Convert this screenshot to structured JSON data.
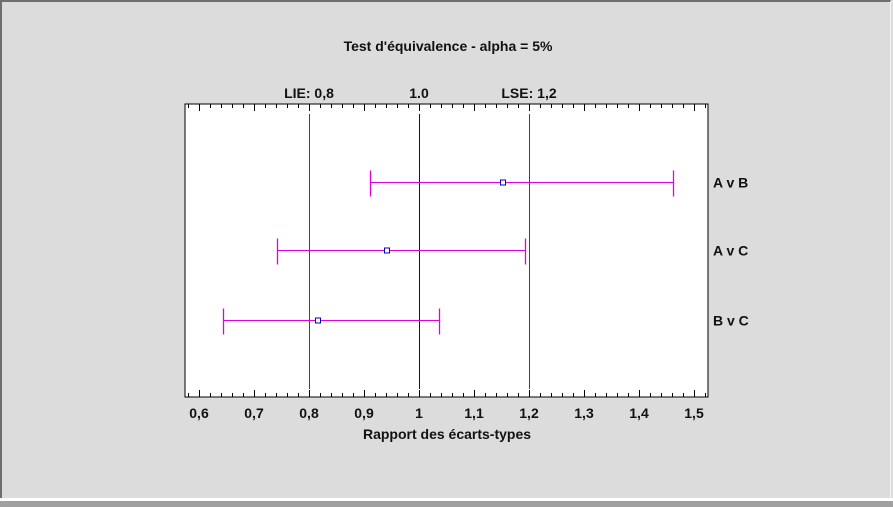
{
  "chart_data": {
    "type": "forest",
    "title": "Test d'équivalence - alpha = 5%",
    "xlabel": "Rapport des écarts-types",
    "ylabel": "",
    "xlim": [
      0.575,
      1.525
    ],
    "x_ticks": [
      "0,6",
      "0,7",
      "0,8",
      "0,9",
      "1",
      "1,1",
      "1,2",
      "1,3",
      "1,4",
      "1,5"
    ],
    "x_tick_values": [
      0.6,
      0.7,
      0.8,
      0.9,
      1.0,
      1.1,
      1.2,
      1.3,
      1.4,
      1.5
    ],
    "reference_lines": [
      {
        "label": "LIE: 0,8",
        "value": 0.8,
        "color": "#e00000"
      },
      {
        "label": "1.0",
        "value": 1.0,
        "color": "#0000c8"
      },
      {
        "label": "LSE: 1,2",
        "value": 1.2,
        "color": "#e00000"
      }
    ],
    "series": [
      {
        "name": "A v B",
        "estimate": 1.153,
        "lower": 0.91,
        "upper": 1.462
      },
      {
        "name": "A v C",
        "estimate": 0.941,
        "lower": 0.742,
        "upper": 1.193
      },
      {
        "name": "B v C",
        "estimate": 0.817,
        "lower": 0.644,
        "upper": 1.036
      }
    ],
    "interval_color": "#e000e0",
    "marker_color": "#0000c8",
    "grid": false,
    "legend": "none"
  }
}
